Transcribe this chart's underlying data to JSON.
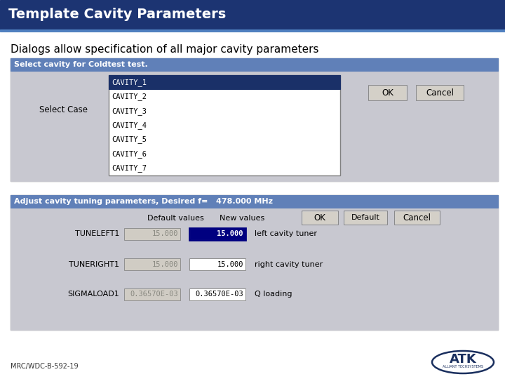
{
  "title": "Template Cavity Parameters",
  "title_bg": "#1c3472",
  "title_color": "#ffffff",
  "subtitle": "Dialogs allow specification of all major cavity parameters",
  "subtitle_color": "#000000",
  "bg_color": "#ffffff",
  "dialog1_title": "Select cavity for Coldtest test.",
  "dialog1_title_bg": "#6080b8",
  "dialog1_title_color": "#ffffff",
  "dialog1_body_bg": "#c8c8d0",
  "dialog1_label": "Select Case",
  "dialog1_selected_bg": "#1a3068",
  "dialog1_selected_color": "#ffffff",
  "dialog1_items": [
    "CAVITY_1",
    "CAVITY_2",
    "CAVITY_3",
    "CAVITY_4",
    "CAVITY_5",
    "CAVITY_6",
    "CAVITY_7"
  ],
  "dialog1_selected_idx": 0,
  "dialog2_title": "Adjust cavity tuning parameters, Desired f=   478.000 MHz",
  "dialog2_title_bg": "#6080b8",
  "dialog2_title_color": "#ffffff",
  "dialog2_body_bg": "#c8c8d0",
  "dialog2_col1": "Default values",
  "dialog2_col2": "New values",
  "dialog2_rows": [
    {
      "label": "TUNELEFT1",
      "default": "15.000",
      "new": "15.000",
      "desc": "left cavity tuner",
      "new_selected": true
    },
    {
      "label": "TUNERIGHT1",
      "default": "15.000",
      "new": "15.000",
      "desc": "right cavity tuner",
      "new_selected": false
    },
    {
      "label": "SIGMALOAD1",
      "default": "0.36570E-03",
      "new": "0.36570E-03",
      "desc": "Q loading",
      "new_selected": false
    }
  ],
  "btn_bg": "#d4d0c8",
  "footer_text": "MRC/WDC-B-592-19",
  "footer_color": "#333333",
  "atk_color": "#1a2f5e"
}
